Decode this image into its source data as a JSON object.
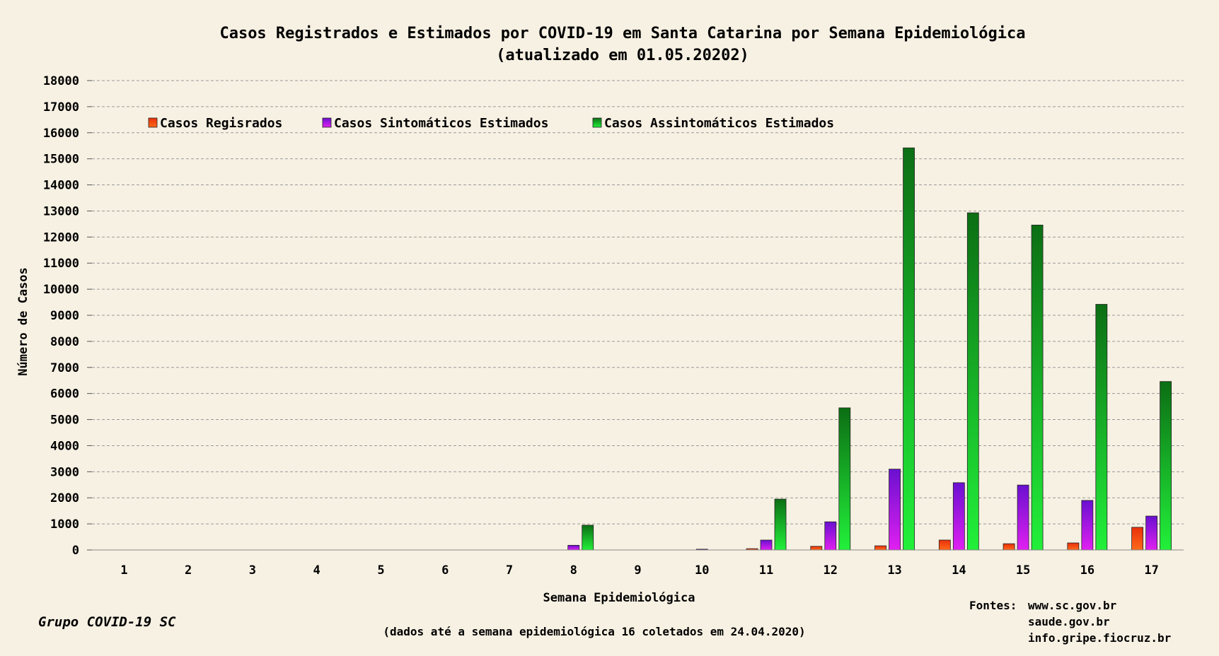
{
  "chart_data": {
    "type": "bar",
    "title": "Casos Registrados e Estimados por COVID-19 em Santa Catarina por Semana Epidemiológica",
    "subtitle": "(atualizado em 01.05.20202)",
    "xlabel": "Semana Epidemiológica",
    "ylabel": "Número de Casos",
    "ylim": [
      0,
      18000
    ],
    "yticks": [
      0,
      1000,
      2000,
      3000,
      4000,
      5000,
      6000,
      7000,
      8000,
      9000,
      10000,
      11000,
      12000,
      13000,
      14000,
      15000,
      16000,
      17000,
      18000
    ],
    "grid": true,
    "legend_position": "top-left",
    "categories": [
      "1",
      "2",
      "3",
      "4",
      "5",
      "6",
      "7",
      "8",
      "9",
      "10",
      "11",
      "12",
      "13",
      "14",
      "15",
      "16",
      "17"
    ],
    "series": [
      {
        "name": "Casos Regisrados",
        "color": "#ee3a0e",
        "values": [
          0,
          0,
          0,
          0,
          0,
          0,
          0,
          0,
          0,
          0,
          50,
          140,
          160,
          380,
          240,
          270,
          870
        ]
      },
      {
        "name": "Casos Sintomáticos Estimados",
        "color": "#7a10d8",
        "values": [
          0,
          0,
          0,
          0,
          0,
          0,
          0,
          180,
          0,
          30,
          380,
          1080,
          3100,
          2580,
          2490,
          1900,
          1300
        ]
      },
      {
        "name": "Casos Assintomáticos Estimados",
        "color": "#0cb81e",
        "values": [
          0,
          0,
          0,
          0,
          0,
          0,
          0,
          950,
          0,
          0,
          1950,
          5450,
          15420,
          12930,
          12460,
          9420,
          6460
        ]
      }
    ]
  },
  "footer": {
    "author": "Grupo COVID-19 SC",
    "note": "(dados até a semana epidemiológica 16 coletados em 24.04.2020)",
    "sources_label": "Fontes:",
    "sources": [
      "www.sc.gov.br",
      "saude.gov.br",
      "info.gripe.fiocruz.br"
    ]
  }
}
